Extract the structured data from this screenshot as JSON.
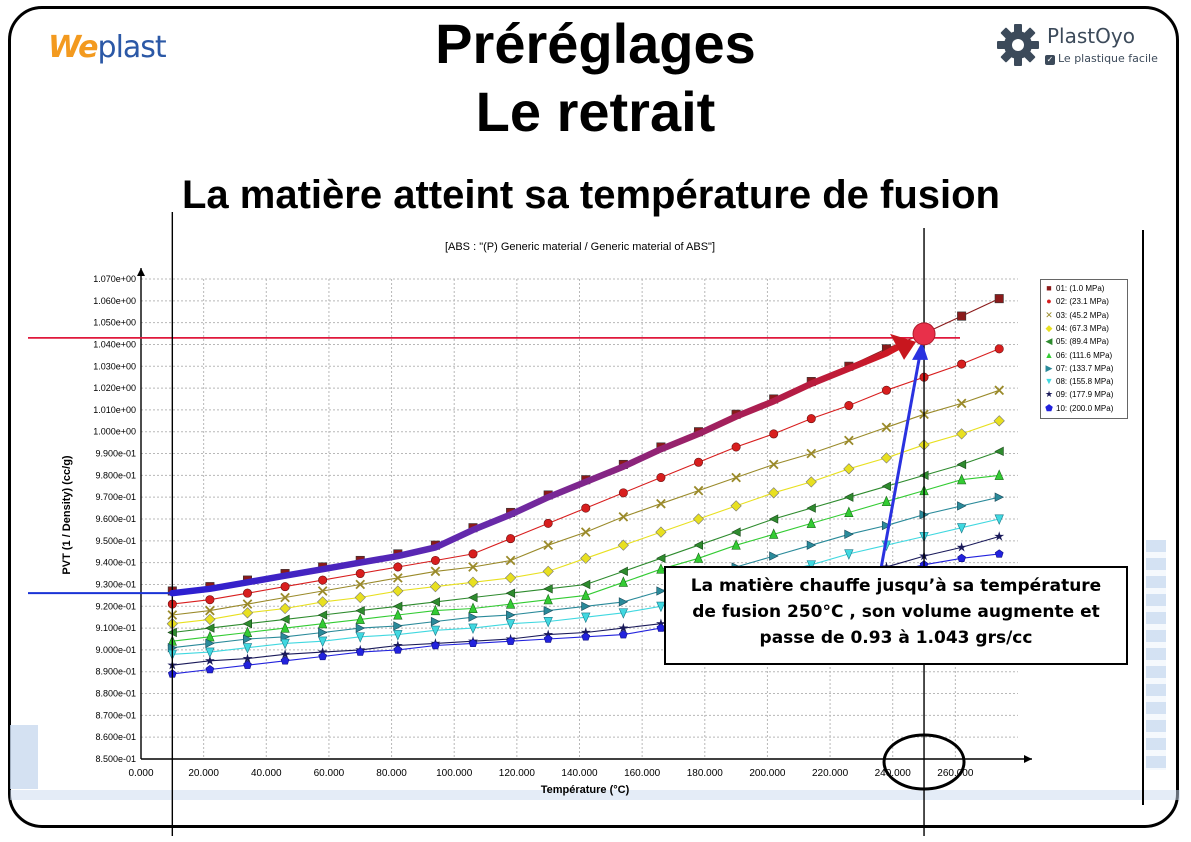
{
  "header": {
    "title_line1": "Préréglages",
    "title_line2": "Le retrait",
    "subtitle": "La matière atteint sa température de fusion"
  },
  "logos": {
    "left_we": "We",
    "left_plast": "plast",
    "right_name": "PlastOyo",
    "right_tagline": "Le plastique facile"
  },
  "callout": {
    "line1": "La matière chauffe jusqu’à sa température",
    "line2": "de fusion 250°C , son volume augmente et",
    "line3": "passe de 0.93 à 1.043 grs/cc"
  },
  "colors": {
    "accent_red": "#e0183c",
    "accent_blue": "#1a32d6",
    "path_start": "#2a1fd2",
    "path_end": "#c8161e"
  },
  "chart_data": {
    "type": "line",
    "title": "[ABS : \"(P)  Generic material / Generic material of ABS\"]",
    "xlabel": "Température (°C)",
    "ylabel": "PVT (1 / Density) (cc/g)",
    "xlim": [
      0,
      280
    ],
    "ylim": [
      0.85,
      1.07
    ],
    "grid": true,
    "legend_position": "right",
    "x_ticks": [
      "0.000",
      "20.000",
      "40.000",
      "60.000",
      "80.000",
      "100.000",
      "120.000",
      "140.000",
      "160.000",
      "180.000",
      "200.000",
      "220.000",
      "240.000",
      "260.000"
    ],
    "y_ticks": [
      "8.500e-01",
      "8.600e-01",
      "8.700e-01",
      "8.800e-01",
      "8.900e-01",
      "9.000e-01",
      "9.100e-01",
      "9.200e-01",
      "9.300e-01",
      "9.400e-01",
      "9.500e-01",
      "9.600e-01",
      "9.700e-01",
      "9.800e-01",
      "9.900e-01",
      "1.000e+00",
      "1.010e+00",
      "1.020e+00",
      "1.030e+00",
      "1.040e+00",
      "1.050e+00",
      "1.060e+00",
      "1.070e+00"
    ],
    "x": [
      10,
      22,
      34,
      46,
      58,
      70,
      82,
      94,
      106,
      118,
      130,
      142,
      154,
      166,
      178,
      190,
      202,
      214,
      226,
      238,
      250,
      262,
      274
    ],
    "series": [
      {
        "name": "01: (1.0 MPa)",
        "marker": "square",
        "color": "#8b1a1a",
        "values": [
          0.927,
          0.929,
          0.932,
          0.935,
          0.938,
          0.941,
          0.944,
          0.948,
          0.956,
          0.963,
          0.971,
          0.978,
          0.985,
          0.993,
          1.0,
          1.008,
          1.015,
          1.023,
          1.03,
          1.038,
          1.045,
          1.053,
          1.061
        ]
      },
      {
        "name": "02: (23.1 MPa)",
        "marker": "circle",
        "color": "#d81e1e",
        "values": [
          0.921,
          0.923,
          0.926,
          0.929,
          0.932,
          0.935,
          0.938,
          0.941,
          0.944,
          0.951,
          0.958,
          0.965,
          0.972,
          0.979,
          0.986,
          0.993,
          0.999,
          1.006,
          1.012,
          1.019,
          1.025,
          1.031,
          1.038
        ]
      },
      {
        "name": "03: (45.2 MPa)",
        "marker": "x",
        "color": "#9a8a2a",
        "values": [
          0.916,
          0.918,
          0.921,
          0.924,
          0.927,
          0.93,
          0.933,
          0.936,
          0.938,
          0.941,
          0.948,
          0.954,
          0.961,
          0.967,
          0.973,
          0.979,
          0.985,
          0.99,
          0.996,
          1.002,
          1.008,
          1.013,
          1.019
        ]
      },
      {
        "name": "04: (67.3 MPa)",
        "marker": "diamond",
        "color": "#e8e020",
        "values": [
          0.912,
          0.914,
          0.917,
          0.919,
          0.922,
          0.924,
          0.927,
          0.929,
          0.931,
          0.933,
          0.936,
          0.942,
          0.948,
          0.954,
          0.96,
          0.966,
          0.972,
          0.977,
          0.983,
          0.988,
          0.994,
          0.999,
          1.005
        ]
      },
      {
        "name": "05: (89.4 MPa)",
        "marker": "triangle-left",
        "color": "#2e8b2e",
        "values": [
          0.908,
          0.91,
          0.912,
          0.914,
          0.916,
          0.918,
          0.92,
          0.922,
          0.924,
          0.926,
          0.928,
          0.93,
          0.936,
          0.942,
          0.948,
          0.954,
          0.96,
          0.965,
          0.97,
          0.975,
          0.98,
          0.985,
          0.991
        ]
      },
      {
        "name": "06: (111.6 MPa)",
        "marker": "triangle-up",
        "color": "#33cc33",
        "values": [
          0.904,
          0.906,
          0.908,
          0.91,
          0.912,
          0.914,
          0.916,
          0.918,
          0.919,
          0.921,
          0.923,
          0.925,
          0.931,
          0.937,
          0.942,
          0.948,
          0.953,
          0.958,
          0.963,
          0.968,
          0.973,
          0.978,
          0.98
        ]
      },
      {
        "name": "07: (133.7 MPa)",
        "marker": "triangle-right",
        "color": "#2a8a9a",
        "values": [
          0.901,
          0.903,
          0.905,
          0.906,
          0.908,
          0.91,
          0.911,
          0.913,
          0.915,
          0.916,
          0.918,
          0.92,
          0.922,
          0.927,
          0.933,
          0.938,
          0.943,
          0.948,
          0.953,
          0.957,
          0.962,
          0.966,
          0.97
        ]
      },
      {
        "name": "08: (155.8 MPa)",
        "marker": "triangle-down",
        "color": "#40d8e0",
        "values": [
          0.898,
          0.899,
          0.901,
          0.903,
          0.904,
          0.906,
          0.907,
          0.909,
          0.91,
          0.912,
          0.913,
          0.915,
          0.917,
          0.92,
          0.925,
          0.93,
          0.935,
          0.939,
          0.944,
          0.948,
          0.952,
          0.956,
          0.96
        ]
      },
      {
        "name": "09: (177.9 MPa)",
        "marker": "star",
        "color": "#1a1a5a",
        "values": [
          0.893,
          0.895,
          0.896,
          0.898,
          0.899,
          0.9,
          0.902,
          0.903,
          0.904,
          0.905,
          0.907,
          0.908,
          0.91,
          0.912,
          0.916,
          0.921,
          0.925,
          0.93,
          0.934,
          0.938,
          0.943,
          0.947,
          0.952
        ]
      },
      {
        "name": "10: (200.0 MPa)",
        "marker": "pentagon",
        "color": "#2222dd",
        "values": [
          0.889,
          0.891,
          0.893,
          0.895,
          0.897,
          0.899,
          0.9,
          0.902,
          0.903,
          0.904,
          0.905,
          0.906,
          0.907,
          0.91,
          0.914,
          0.918,
          0.922,
          0.926,
          0.931,
          0.935,
          0.939,
          0.942,
          0.944
        ]
      }
    ],
    "annotations": {
      "heating_path_x": [
        10,
        22,
        34,
        46,
        58,
        70,
        82,
        94,
        106,
        118,
        130,
        142,
        154,
        166,
        178,
        190,
        202,
        214,
        226,
        238,
        250
      ],
      "heating_path_y": [
        0.926,
        0.928,
        0.931,
        0.934,
        0.937,
        0.94,
        0.943,
        0.947,
        0.955,
        0.962,
        0.97,
        0.977,
        0.984,
        0.992,
        0.999,
        1.007,
        1.014,
        1.022,
        1.029,
        1.036,
        1.043
      ],
      "melt_point_x": 250,
      "melt_point_y": 1.043,
      "start_line_y": 0.926,
      "vertical_line_start_x": 10,
      "vertical_line_melt_x": 250
    }
  }
}
